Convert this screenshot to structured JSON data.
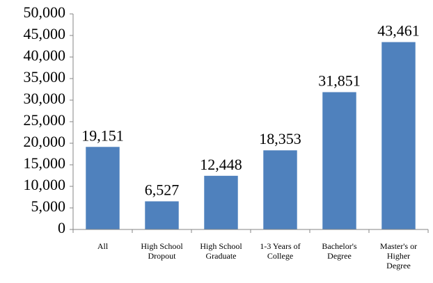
{
  "chart_data": {
    "type": "bar",
    "categories": [
      "All",
      "High School\nDropout",
      "High School\nGraduate",
      "1-3 Years of\nCollege",
      "Bachelor's\nDegree",
      "Master's or\nHigher\nDegree"
    ],
    "values": [
      19151,
      6527,
      12448,
      18353,
      31851,
      43461
    ],
    "value_labels": [
      "19,151",
      "6,527",
      "12,448",
      "18,353",
      "31,851",
      "43,461"
    ],
    "color": "#4f81bd",
    "ylim": [
      0,
      50000
    ],
    "yticks": [
      0,
      {
        "value": 5000,
        "label": "5,000"
      },
      {
        "value": 10000,
        "label": "10,000"
      },
      {
        "value": 15000,
        "label": "15,000"
      },
      {
        "value": 20000,
        "label": "20,000"
      },
      {
        "value": 25000,
        "label": "25,000"
      },
      {
        "value": 30000,
        "label": "30,000"
      },
      {
        "value": 35000,
        "label": "35,000"
      },
      {
        "value": 40000,
        "label": "40,000"
      },
      {
        "value": 45000,
        "label": "45,000"
      },
      {
        "value": 50000,
        "label": "50,000"
      }
    ],
    "grid": false
  }
}
